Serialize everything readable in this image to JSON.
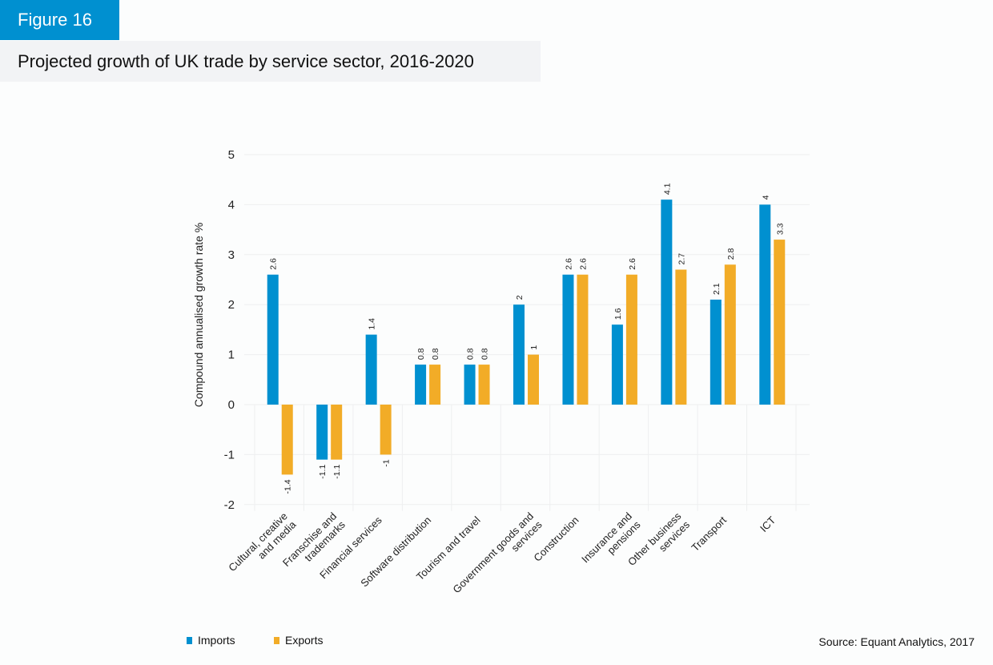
{
  "header": {
    "figure_label": "Figure 16",
    "title": "Projected growth of UK trade by service sector, 2016-2020"
  },
  "source": "Source: Equant Analytics, 2017",
  "colors": {
    "imports": "#0090d0",
    "exports": "#f2ac27",
    "grid": "#eeeff0"
  },
  "chart_data": {
    "type": "bar",
    "title": "Projected growth of UK trade by service sector, 2016-2020",
    "xlabel": "",
    "ylabel": "Compound annualised growth rate %",
    "ylim": [
      -2,
      5
    ],
    "yticks": [
      5,
      4,
      3,
      2,
      1,
      0,
      -1,
      -2
    ],
    "grid": true,
    "legend_position": "bottom-left",
    "categories": [
      [
        "Cultural, creative",
        "and media"
      ],
      [
        "Franschise and",
        "trademarks"
      ],
      [
        "Financial services"
      ],
      [
        "Software distribution"
      ],
      [
        "Tourism and travel"
      ],
      [
        "Government goods and",
        "services"
      ],
      [
        "Construction"
      ],
      [
        "Insurance and",
        "pensions"
      ],
      [
        "Other business",
        "services"
      ],
      [
        "Transport"
      ],
      [
        "ICT"
      ]
    ],
    "series": [
      {
        "name": "Imports",
        "values": [
          2.6,
          -1.1,
          1.4,
          0.8,
          0.8,
          2,
          2.6,
          1.6,
          4.1,
          2.1,
          4
        ],
        "labels": [
          "2.6",
          "-1.1",
          "1.4",
          "0.8",
          "0.8",
          "2",
          "2.6",
          "1.6",
          "4.1",
          "2.1",
          "4"
        ]
      },
      {
        "name": "Exports",
        "values": [
          -1.4,
          -1.1,
          -1,
          0.8,
          0.8,
          1,
          2.6,
          2.6,
          2.7,
          2.8,
          3.3
        ],
        "labels": [
          "-1.4",
          "-1.1",
          "-1",
          "0.8",
          "0.8",
          "1",
          "2.6",
          "2.6",
          "2.7",
          "2.8",
          "3.3"
        ]
      }
    ]
  }
}
